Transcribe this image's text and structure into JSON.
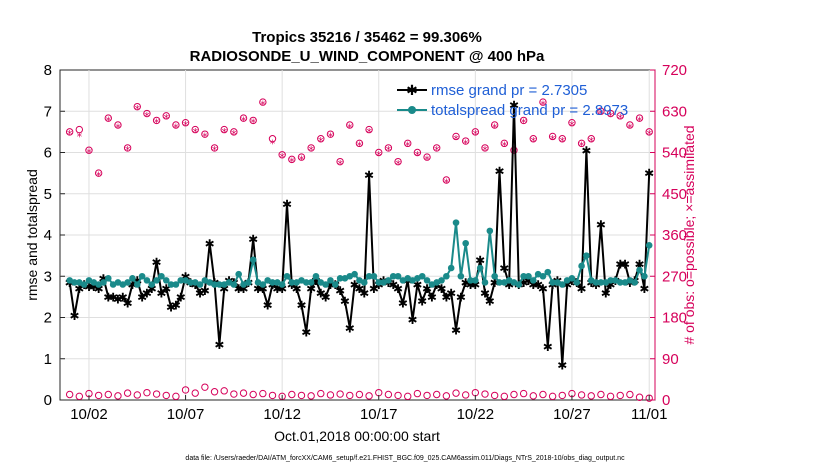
{
  "chart_data": {
    "type": "line",
    "title": "Tropics 35216 / 35462 = 99.306%",
    "subtitle": "RADIOSONDE_U_WIND_COMPONENT @ 400 hPa",
    "xlabel": "Oct.01,2018 00:00:00 start",
    "ylabel": "rmse and totalspread",
    "y2label": "# of obs: o=possible; ×=assimilated",
    "xlim": [
      0.5,
      31.3
    ],
    "ylim": [
      0,
      8
    ],
    "y2lim": [
      0,
      720
    ],
    "x_ticks": [
      {
        "x": 2,
        "label": "10/02"
      },
      {
        "x": 7,
        "label": "10/07"
      },
      {
        "x": 12,
        "label": "10/12"
      },
      {
        "x": 17,
        "label": "10/17"
      },
      {
        "x": 22,
        "label": "10/22"
      },
      {
        "x": 27,
        "label": "10/27"
      },
      {
        "x": 31,
        "label": "11/01"
      }
    ],
    "y_ticks": [
      "0",
      "1",
      "2",
      "3",
      "4",
      "5",
      "6",
      "7",
      "8"
    ],
    "y_tick_values": [
      0,
      1,
      2,
      3,
      4,
      5,
      6,
      7,
      8
    ],
    "y2_ticks": [
      "0",
      "90",
      "180",
      "270",
      "360",
      "450",
      "540",
      "630",
      "720"
    ],
    "y2_tick_values": [
      0,
      90,
      180,
      270,
      360,
      450,
      540,
      630,
      720
    ],
    "legend": [
      {
        "label": "rmse grand pr = 2.7305",
        "color": "#000000"
      },
      {
        "label": "totalspread grand pr = 2.8973",
        "color": "#1a8a8a"
      }
    ],
    "series": [
      {
        "name": "rmse",
        "color": "#000000",
        "x": [
          1.0,
          1.25,
          1.5,
          1.75,
          2.0,
          2.25,
          2.5,
          2.75,
          3.0,
          3.25,
          3.5,
          3.75,
          4.0,
          4.25,
          4.5,
          4.75,
          5.0,
          5.25,
          5.5,
          5.75,
          6.0,
          6.25,
          6.5,
          6.75,
          7.0,
          7.25,
          7.5,
          7.75,
          8.0,
          8.25,
          8.5,
          8.75,
          9.0,
          9.25,
          9.5,
          9.75,
          10.0,
          10.25,
          10.5,
          10.75,
          11.0,
          11.25,
          11.5,
          11.75,
          12.0,
          12.25,
          12.5,
          12.75,
          13.0,
          13.25,
          13.5,
          13.75,
          14.0,
          14.25,
          14.5,
          14.75,
          15.0,
          15.25,
          15.5,
          15.75,
          16.0,
          16.25,
          16.5,
          16.75,
          17.0,
          17.25,
          17.5,
          17.75,
          18.0,
          18.25,
          18.5,
          18.75,
          19.0,
          19.25,
          19.5,
          19.75,
          20.0,
          20.25,
          20.5,
          20.75,
          21.0,
          21.25,
          21.5,
          21.75,
          22.0,
          22.25,
          22.5,
          22.75,
          23.0,
          23.25,
          23.5,
          23.75,
          24.0,
          24.25,
          24.5,
          24.75,
          25.0,
          25.25,
          25.5,
          25.75,
          26.0,
          26.25,
          26.5,
          26.75,
          27.0,
          27.25,
          27.5,
          27.75,
          28.0,
          28.25,
          28.5,
          28.75,
          29.0,
          29.25,
          29.5,
          29.75,
          30.0,
          30.25,
          30.5,
          30.75,
          31.0
        ],
        "values": [
          2.85,
          2.05,
          2.7,
          2.8,
          2.75,
          2.75,
          2.7,
          2.95,
          2.5,
          2.5,
          2.45,
          2.5,
          2.35,
          2.8,
          2.9,
          2.5,
          2.6,
          2.7,
          3.35,
          2.6,
          2.7,
          2.25,
          2.3,
          2.5,
          3.0,
          2.85,
          2.8,
          2.6,
          2.65,
          3.8,
          2.85,
          1.35,
          2.7,
          2.9,
          2.85,
          2.7,
          2.7,
          2.85,
          3.9,
          2.7,
          2.7,
          2.3,
          2.8,
          2.7,
          2.7,
          4.75,
          2.8,
          2.7,
          2.3,
          1.65,
          2.7,
          2.9,
          2.6,
          2.5,
          2.8,
          2.8,
          2.65,
          2.4,
          1.75,
          2.8,
          2.7,
          2.6,
          5.45,
          2.7,
          2.8,
          2.9,
          2.85,
          2.8,
          2.7,
          2.35,
          2.9,
          1.95,
          2.8,
          2.4,
          2.7,
          2.5,
          2.8,
          2.7,
          2.5,
          2.6,
          1.7,
          2.5,
          2.85,
          2.8,
          2.8,
          3.4,
          2.6,
          2.4,
          2.85,
          5.55,
          3.2,
          2.8,
          7.15,
          2.8,
          2.85,
          2.9,
          2.8,
          2.8,
          2.7,
          1.3,
          2.8,
          2.9,
          0.85,
          2.8,
          2.9,
          2.85,
          2.7,
          6.05,
          2.85,
          2.8,
          4.25,
          2.6,
          2.8,
          2.9,
          3.3,
          3.3,
          2.85,
          2.9,
          3.3,
          2.7,
          5.5
        ],
        "style": "line-star"
      },
      {
        "name": "totalspread",
        "color": "#1a8a8a",
        "x": [
          1.0,
          1.25,
          1.5,
          1.75,
          2.0,
          2.25,
          2.5,
          2.75,
          3.0,
          3.25,
          3.5,
          3.75,
          4.0,
          4.25,
          4.5,
          4.75,
          5.0,
          5.25,
          5.5,
          5.75,
          6.0,
          6.25,
          6.5,
          6.75,
          7.0,
          7.25,
          7.5,
          7.75,
          8.0,
          8.25,
          8.5,
          8.75,
          9.0,
          9.25,
          9.5,
          9.75,
          10.0,
          10.25,
          10.5,
          10.75,
          11.0,
          11.25,
          11.5,
          11.75,
          12.0,
          12.25,
          12.5,
          12.75,
          13.0,
          13.25,
          13.5,
          13.75,
          14.0,
          14.25,
          14.5,
          14.75,
          15.0,
          15.25,
          15.5,
          15.75,
          16.0,
          16.25,
          16.5,
          16.75,
          17.0,
          17.25,
          17.5,
          17.75,
          18.0,
          18.25,
          18.5,
          18.75,
          19.0,
          19.25,
          19.5,
          19.75,
          20.0,
          20.25,
          20.5,
          20.75,
          21.0,
          21.25,
          21.5,
          21.75,
          22.0,
          22.25,
          22.5,
          22.75,
          23.0,
          23.25,
          23.5,
          23.75,
          24.0,
          24.25,
          24.5,
          24.75,
          25.0,
          25.25,
          25.5,
          25.75,
          26.0,
          26.25,
          26.5,
          26.75,
          27.0,
          27.25,
          27.5,
          27.75,
          28.0,
          28.25,
          28.5,
          28.75,
          29.0,
          29.25,
          29.5,
          29.75,
          30.0,
          30.25,
          30.5,
          30.75,
          31.0
        ],
        "values": [
          2.9,
          2.85,
          2.85,
          2.8,
          2.9,
          2.85,
          2.8,
          2.85,
          2.95,
          2.8,
          2.85,
          2.8,
          2.85,
          2.95,
          2.8,
          3.0,
          2.9,
          2.8,
          2.9,
          3.0,
          2.9,
          2.8,
          2.8,
          2.9,
          2.9,
          2.85,
          2.85,
          2.8,
          2.9,
          2.85,
          2.8,
          2.8,
          2.8,
          2.85,
          2.8,
          3.05,
          2.8,
          2.85,
          3.4,
          2.85,
          2.8,
          2.9,
          2.85,
          2.85,
          2.8,
          3.0,
          2.85,
          2.85,
          2.9,
          2.85,
          2.85,
          3.0,
          2.85,
          2.8,
          2.9,
          2.8,
          2.95,
          2.95,
          3.0,
          3.05,
          2.9,
          2.85,
          3.0,
          3.0,
          2.85,
          2.85,
          2.9,
          3.0,
          3.0,
          2.9,
          2.95,
          2.9,
          2.95,
          3.0,
          2.9,
          2.8,
          2.85,
          2.9,
          3.0,
          3.2,
          4.3,
          3.0,
          3.8,
          2.9,
          2.9,
          3.2,
          2.85,
          4.1,
          3.0,
          2.85,
          2.85,
          2.9,
          2.85,
          2.8,
          3.0,
          3.0,
          2.9,
          3.05,
          3.0,
          3.1,
          2.85,
          2.85,
          2.8,
          2.9,
          2.95,
          2.85,
          3.25,
          3.5,
          2.9,
          2.85,
          2.85,
          2.85,
          2.9,
          2.9,
          2.85,
          2.85,
          2.9,
          2.85,
          3.15,
          3.0,
          3.75
        ],
        "style": "line-dot"
      },
      {
        "name": "obs possible (top band)",
        "color": "#d6005a",
        "axis": "right",
        "x": [
          1.0,
          1.5,
          2.0,
          2.5,
          3.0,
          3.5,
          4.0,
          4.5,
          5.0,
          5.5,
          6.0,
          6.5,
          7.0,
          7.5,
          8.0,
          8.5,
          9.0,
          9.5,
          10.0,
          10.5,
          11.0,
          11.5,
          12.0,
          12.5,
          13.0,
          13.5,
          14.0,
          14.5,
          15.0,
          15.5,
          16.0,
          16.5,
          17.0,
          17.5,
          18.0,
          18.5,
          19.0,
          19.5,
          20.0,
          20.5,
          21.0,
          21.5,
          22.0,
          22.5,
          23.0,
          23.5,
          24.0,
          24.5,
          25.0,
          25.5,
          26.0,
          26.5,
          27.0,
          27.5,
          28.0,
          28.5,
          29.0,
          29.5,
          30.0,
          30.5,
          31.0
        ],
        "values": [
          585,
          590,
          545,
          495,
          615,
          600,
          550,
          640,
          625,
          610,
          620,
          600,
          605,
          590,
          580,
          550,
          590,
          585,
          615,
          610,
          650,
          570,
          535,
          525,
          530,
          550,
          570,
          580,
          520,
          600,
          560,
          590,
          540,
          550,
          520,
          560,
          540,
          530,
          550,
          480,
          575,
          565,
          585,
          550,
          600,
          560,
          545,
          610,
          570,
          650,
          575,
          570,
          605,
          560,
          570,
          630,
          625,
          620,
          600,
          615,
          585
        ]
      },
      {
        "name": "obs assimilated (top band)",
        "color": "#d6005a",
        "axis": "right",
        "x": [
          1.0,
          1.5,
          2.0,
          2.5,
          3.0,
          3.5,
          4.0,
          4.5,
          5.0,
          5.5,
          6.0,
          6.5,
          7.0,
          7.5,
          8.0,
          8.5,
          9.0,
          9.5,
          10.0,
          10.5,
          11.0,
          11.5,
          12.0,
          12.5,
          13.0,
          13.5,
          14.0,
          14.5,
          15.0,
          15.5,
          16.0,
          16.5,
          17.0,
          17.5,
          18.0,
          18.5,
          19.0,
          19.5,
          20.0,
          20.5,
          21.0,
          21.5,
          22.0,
          22.5,
          23.0,
          23.5,
          24.0,
          24.5,
          25.0,
          25.5,
          26.0,
          26.5,
          27.0,
          27.5,
          28.0,
          28.5,
          29.0,
          29.5,
          30.0,
          30.5,
          31.0
        ],
        "values": [
          580,
          575,
          540,
          490,
          610,
          595,
          545,
          635,
          620,
          605,
          615,
          595,
          600,
          585,
          575,
          545,
          585,
          580,
          610,
          605,
          645,
          560,
          530,
          520,
          525,
          545,
          565,
          575,
          515,
          595,
          555,
          585,
          535,
          545,
          515,
          555,
          535,
          525,
          545,
          475,
          570,
          560,
          580,
          545,
          595,
          555,
          540,
          605,
          565,
          645,
          570,
          565,
          600,
          555,
          565,
          625,
          620,
          615,
          595,
          610,
          580
        ]
      },
      {
        "name": "obs possible (bottom band)",
        "color": "#d6005a",
        "axis": "right",
        "x": [
          1.0,
          1.5,
          2.0,
          2.5,
          3.0,
          3.5,
          4.0,
          4.5,
          5.0,
          5.5,
          6.0,
          6.5,
          7.0,
          7.5,
          8.0,
          8.5,
          9.0,
          9.5,
          10.0,
          10.5,
          11.0,
          11.5,
          12.0,
          12.5,
          13.0,
          13.5,
          14.0,
          14.5,
          15.0,
          15.5,
          16.0,
          16.5,
          17.0,
          17.5,
          18.0,
          18.5,
          19.0,
          19.5,
          20.0,
          20.5,
          21.0,
          21.5,
          22.0,
          22.5,
          23.0,
          23.5,
          24.0,
          24.5,
          25.0,
          25.5,
          26.0,
          26.5,
          27.0,
          27.5,
          28.0,
          28.5,
          29.0,
          29.5,
          30.0,
          30.5,
          31.0
        ],
        "values": [
          12,
          8,
          14,
          10,
          12,
          9,
          15,
          11,
          16,
          13,
          10,
          8,
          22,
          15,
          28,
          18,
          20,
          13,
          15,
          12,
          14,
          10,
          8,
          12,
          10,
          9,
          14,
          11,
          13,
          10,
          12,
          9,
          16,
          12,
          10,
          8,
          14,
          10,
          12,
          9,
          15,
          11,
          16,
          13,
          10,
          8,
          12,
          14,
          9,
          12,
          8,
          10,
          14,
          11,
          9,
          12,
          8,
          10,
          12,
          6,
          4
        ]
      }
    ]
  },
  "footer": "data file: /Users/raeder/DAI/ATM_forcXX/CAM6_setup/f.e21.FHIST_BGC.f09_025.CAM6assim.011/Diags_NTrS_2018-10/obs_diag_output.nc"
}
